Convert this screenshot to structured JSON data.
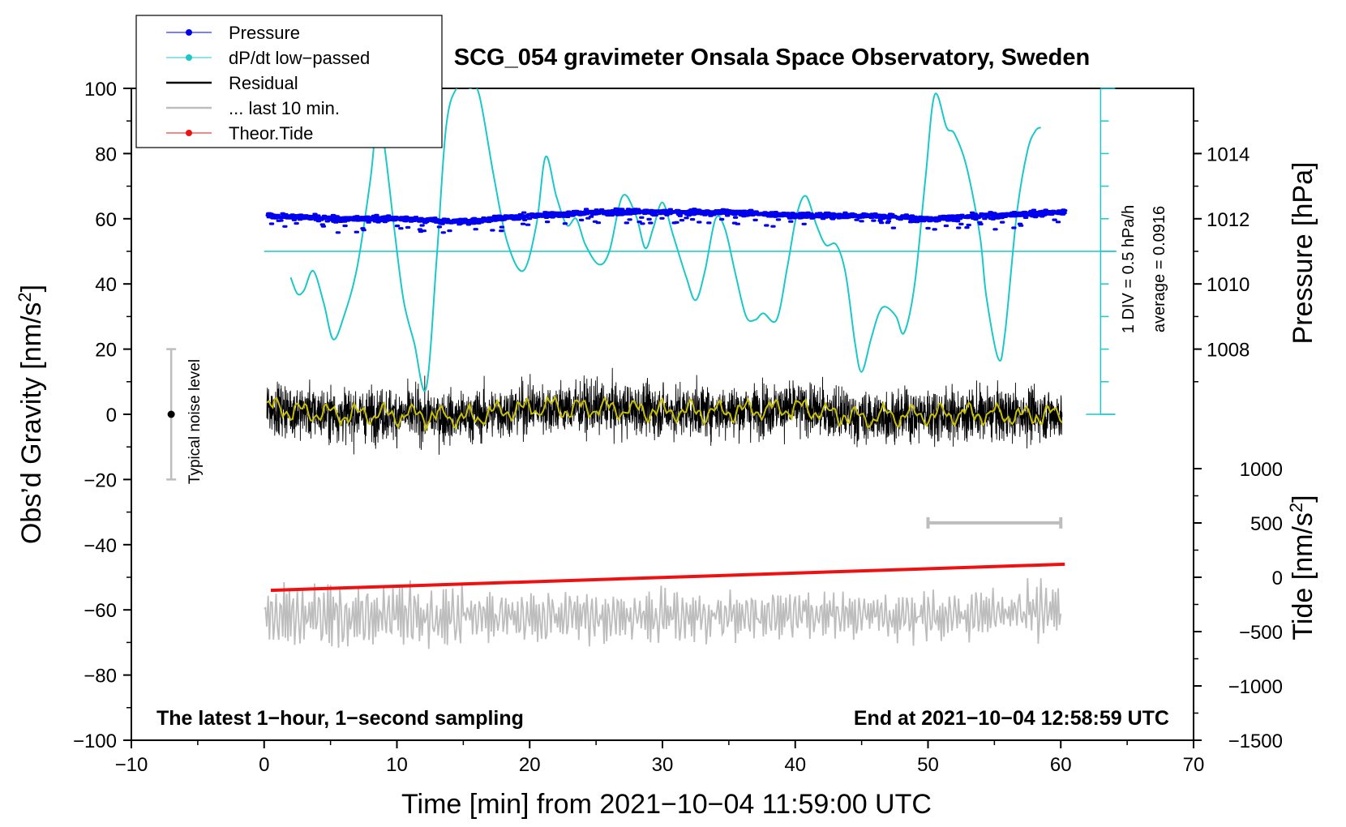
{
  "chart_data": {
    "type": "line",
    "title": "SCG_054 gravimeter Onsala Space Observatory, Sweden",
    "xlabel": "Time [min] from 2021−10−04 11:59:00 UTC",
    "ylabel": "Obs’d Gravity [nm/s",
    "ylabel_sup": "2",
    "ylabel_end": "]",
    "y2label": "Pressure [hPa]",
    "y3label": "Tide [nm/s",
    "y3label_sup": "2",
    "y3label_end": "]",
    "xlim": [
      -10,
      70
    ],
    "ylim": [
      -100,
      100
    ],
    "x_ticks": [
      "−10",
      "0",
      "10",
      "20",
      "30",
      "40",
      "50",
      "60",
      "70"
    ],
    "y_ticks": [
      "−100",
      "−80",
      "−60",
      "−40",
      "−20",
      "0",
      "20",
      "40",
      "60",
      "80",
      "100"
    ],
    "pressure_ticks": [
      "1008",
      "1010",
      "1012",
      "1014"
    ],
    "tide_ticks": [
      "−1500",
      "−1000",
      "−500",
      "0",
      "500",
      "1000"
    ],
    "legend": [
      "Pressure",
      "dP/dt low−passed",
      "Residual",
      "... last 10 min.",
      "Theor.Tide"
    ],
    "legend_position": "top-left",
    "noise_label": "Typical noise level",
    "dpdt_scale_label": "1 DIV = 0.5 hPa/h",
    "dpdt_average_label": "average = 0.0916",
    "footer_left": "The latest 1−hour, 1−second sampling",
    "footer_right": "End at 2021−10−04 12:58:59 UTC",
    "colors": {
      "pressure": "#0000ee",
      "dpdt": "#1bc8c8",
      "residual": "#000000",
      "residual_smooth": "#c8c000",
      "last10": "#bdbdbd",
      "tide": "#ee1111"
    },
    "series": [
      {
        "name": "Pressure",
        "unit": "hPa",
        "points": [
          [
            0.3,
            1012.1
          ],
          [
            5,
            1012.0
          ],
          [
            10,
            1012.0
          ],
          [
            15,
            1011.9
          ],
          [
            20,
            1012.1
          ],
          [
            25,
            1012.2
          ],
          [
            30,
            1012.2
          ],
          [
            35,
            1012.2
          ],
          [
            40,
            1012.1
          ],
          [
            45,
            1012.1
          ],
          [
            50,
            1012.0
          ],
          [
            55,
            1012.1
          ],
          [
            60.3,
            1012.2
          ]
        ]
      },
      {
        "name": "dP/dt low−passed",
        "unit": "hPa/h (1 DIV = 0.5 hPa/h, zero line at y=50)",
        "points": [
          [
            2,
            42
          ],
          [
            2.5,
            37
          ],
          [
            3,
            38
          ],
          [
            3.7,
            44
          ],
          [
            4.5,
            34
          ],
          [
            5.2,
            23
          ],
          [
            6,
            30
          ],
          [
            7,
            45
          ],
          [
            8,
            72
          ],
          [
            8.5,
            90
          ],
          [
            9,
            84
          ],
          [
            9.8,
            57
          ],
          [
            10.5,
            35
          ],
          [
            11.3,
            22
          ],
          [
            12.2,
            8
          ],
          [
            13,
            48
          ],
          [
            13.7,
            88
          ],
          [
            14.5,
            100
          ],
          [
            15.5,
            100
          ],
          [
            16.2,
            98
          ],
          [
            17.3,
            73
          ],
          [
            18.3,
            53
          ],
          [
            19.5,
            44
          ],
          [
            20.5,
            58
          ],
          [
            21.2,
            79
          ],
          [
            22,
            67
          ],
          [
            22.8,
            58
          ],
          [
            23.5,
            60
          ],
          [
            24.2,
            52
          ],
          [
            25.2,
            46
          ],
          [
            26,
            50
          ],
          [
            27,
            67
          ],
          [
            28,
            61
          ],
          [
            28.7,
            51
          ],
          [
            29.3,
            57
          ],
          [
            30,
            65
          ],
          [
            30.8,
            55
          ],
          [
            31.8,
            42
          ],
          [
            32.5,
            35
          ],
          [
            33.2,
            44
          ],
          [
            34,
            60
          ],
          [
            34.7,
            57
          ],
          [
            35.5,
            43
          ],
          [
            36.3,
            30
          ],
          [
            37,
            29
          ],
          [
            37.6,
            31
          ],
          [
            38.6,
            29
          ],
          [
            39.4,
            45
          ],
          [
            40.1,
            61
          ],
          [
            40.8,
            67
          ],
          [
            41.6,
            58
          ],
          [
            42.3,
            52
          ],
          [
            43.1,
            52
          ],
          [
            43.8,
            43
          ],
          [
            44.5,
            22
          ],
          [
            45,
            13
          ],
          [
            45.7,
            23
          ],
          [
            46.3,
            31
          ],
          [
            46.8,
            33
          ],
          [
            47.6,
            30
          ],
          [
            48.2,
            25
          ],
          [
            49,
            40
          ],
          [
            49.8,
            72
          ],
          [
            50.5,
            98
          ],
          [
            51.4,
            88
          ],
          [
            52,
            86
          ],
          [
            52.9,
            76
          ],
          [
            53.9,
            55
          ],
          [
            54.4,
            36
          ],
          [
            55.3,
            17
          ],
          [
            55.8,
            25
          ],
          [
            56.7,
            62
          ],
          [
            57.5,
            81
          ],
          [
            58.1,
            87
          ],
          [
            58.5,
            88
          ]
        ]
      },
      {
        "name": "Residual",
        "unit": "nm/s2",
        "points": [
          [
            0.3,
            2
          ],
          [
            5,
            0
          ],
          [
            10,
            0
          ],
          [
            15,
            -1
          ],
          [
            20,
            2
          ],
          [
            25,
            2
          ],
          [
            30,
            1
          ],
          [
            35,
            1
          ],
          [
            40,
            2
          ],
          [
            45,
            -1
          ],
          [
            50,
            0
          ],
          [
            55,
            0
          ],
          [
            60,
            0
          ]
        ]
      },
      {
        "name": "... last 10 min.",
        "unit": "nm/s2 (offset trace)",
        "points": [
          [
            0,
            -62
          ],
          [
            10,
            -62
          ],
          [
            20,
            -62
          ],
          [
            30,
            -62
          ],
          [
            40,
            -62
          ],
          [
            50,
            -62
          ],
          [
            60,
            -60
          ]
        ]
      },
      {
        "name": "Theor.Tide",
        "unit": "nm/s2 (right axis)",
        "points": [
          [
            0.5,
            -120
          ],
          [
            60.3,
            120
          ]
        ]
      }
    ],
    "noise_bar": {
      "x": -7,
      "center": 0,
      "range": [
        -20,
        20
      ]
    },
    "last10_marker_range_min": [
      50,
      60
    ]
  }
}
